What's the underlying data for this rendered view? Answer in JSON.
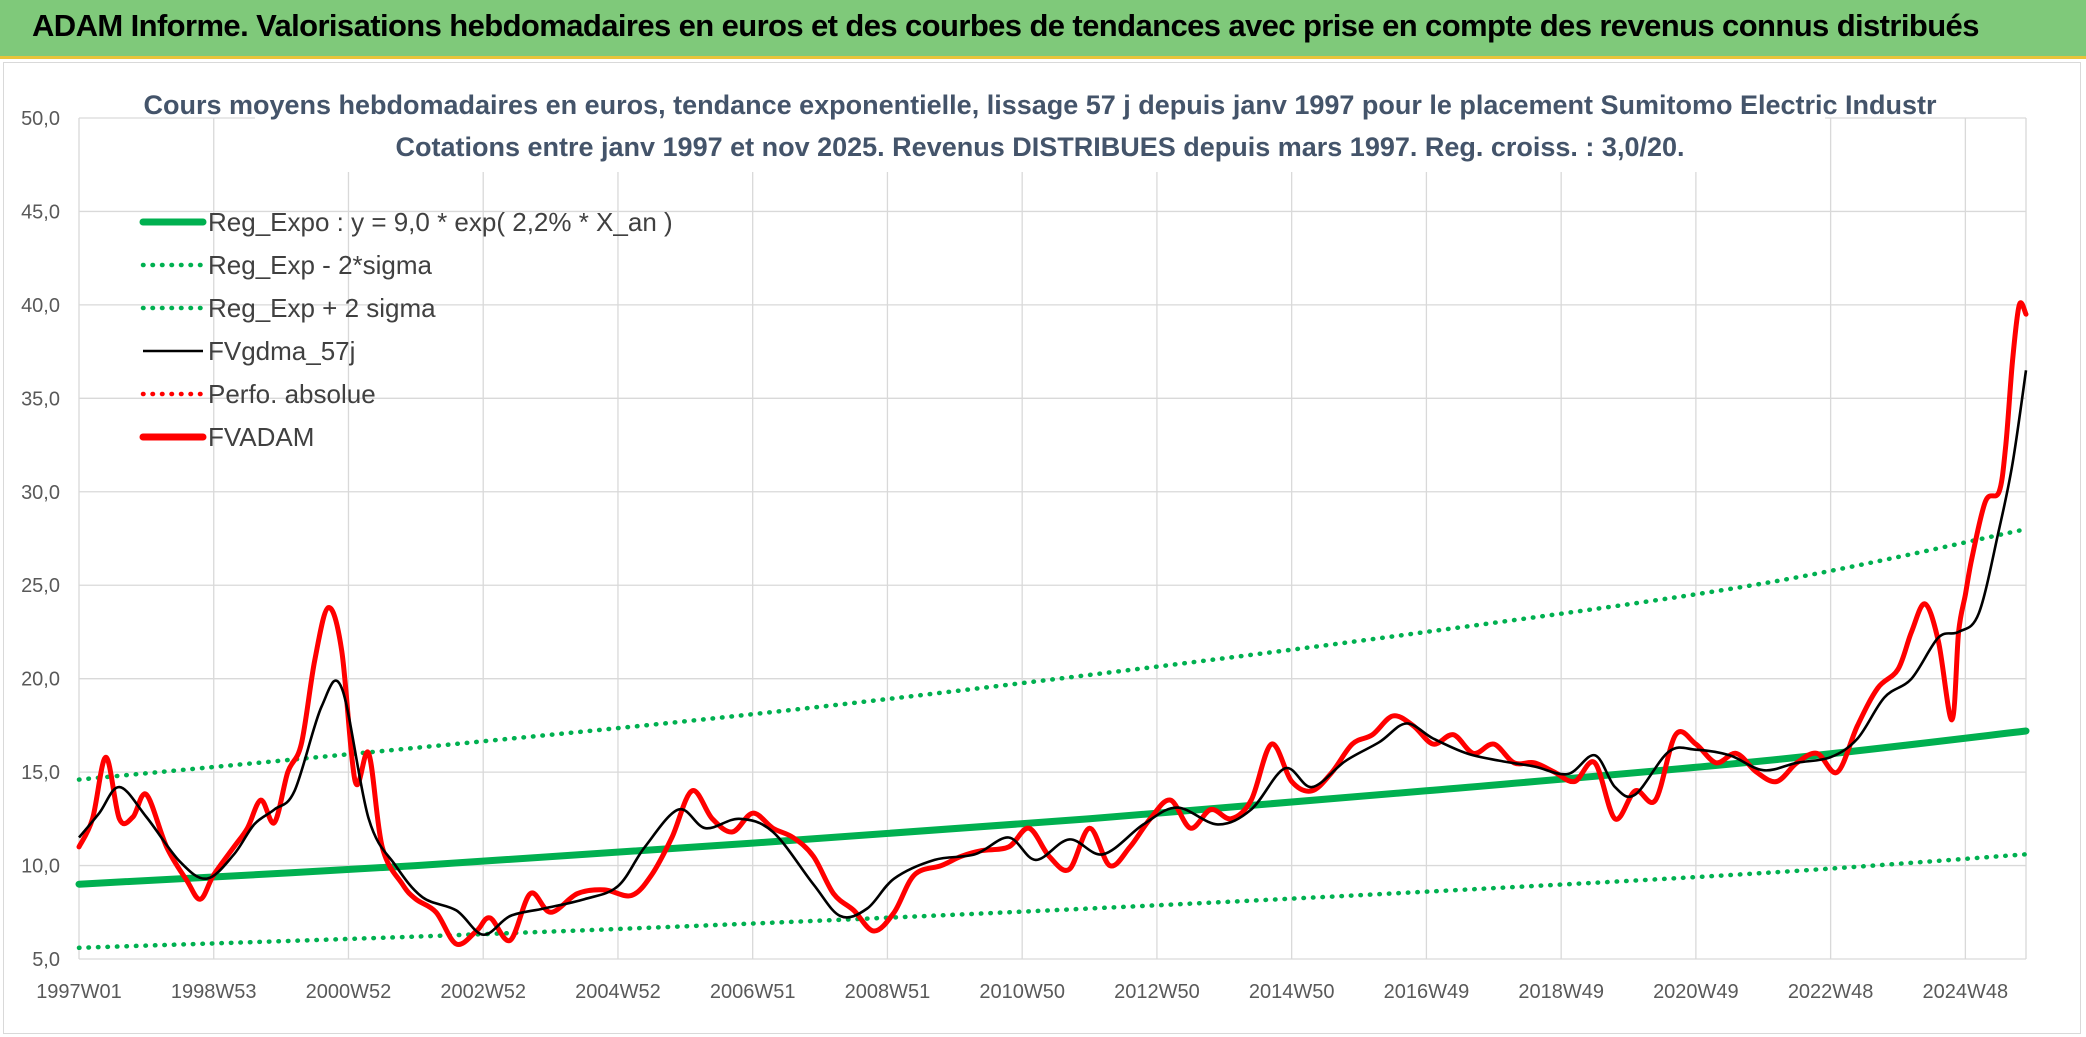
{
  "header": {
    "title": "ADAM Informe. Valorisations hebdomadaires en euros et des courbes de tendances avec prise en compte des revenus connus distribués"
  },
  "chart_data": {
    "type": "line",
    "title": "Cours moyens hebdomadaires en euros, tendance exponentielle, lissage 57 j depuis janv 1997 pour le placement Sumitomo Electric Industr",
    "subtitle": "Cotations entre janv 1997 et nov 2025. Revenus DISTRIBUES depuis mars 1997. Reg. croiss. : 3,0/20.",
    "xlabel": "",
    "ylabel": "",
    "xlim": [
      1997.0,
      2025.9
    ],
    "ylim": [
      5.0,
      50.0
    ],
    "y_ticks": [
      "5,0",
      "10,0",
      "15,0",
      "20,0",
      "25,0",
      "30,0",
      "35,0",
      "40,0",
      "45,0",
      "50,0"
    ],
    "x_ticks": [
      "1997W01",
      "1998W53",
      "2000W52",
      "2002W52",
      "2004W52",
      "2006W51",
      "2008W51",
      "2010W50",
      "2012W50",
      "2014W50",
      "2016W49",
      "2018W49",
      "2020W49",
      "2022W48",
      "2024W48"
    ],
    "grid": true,
    "legend_position": "top-left",
    "legend": [
      {
        "label": "Reg_Expo : y = 9,0 * exp( 2,2% *  X_an )",
        "color": "#00b050",
        "style": "solid-thick"
      },
      {
        "label": "Reg_Exp - 2*sigma",
        "color": "#00b050",
        "style": "dotted"
      },
      {
        "label": "Reg_Exp + 2 sigma",
        "color": "#00b050",
        "style": "dotted"
      },
      {
        "label": "FVgdma_57j",
        "color": "#000000",
        "style": "solid"
      },
      {
        "label": "Perfo. absolue",
        "color": "#ff0000",
        "style": "dotted"
      },
      {
        "label": "FVADAM",
        "color": "#ff0000",
        "style": "solid-thick"
      }
    ],
    "series": [
      {
        "name": "Reg_Expo : y = 9,0 * exp( 2,2% *  X_an )",
        "color": "#00b050",
        "x": [
          1997.0,
          2002.0,
          2007.0,
          2012.0,
          2017.0,
          2022.0,
          2025.9
        ],
        "y": [
          9.0,
          10.0,
          11.2,
          12.5,
          14.0,
          15.6,
          17.2
        ]
      },
      {
        "name": "Reg_Exp - 2*sigma",
        "color": "#00b050",
        "x": [
          1997.0,
          2002.0,
          2007.0,
          2012.0,
          2017.0,
          2022.0,
          2025.9
        ],
        "y": [
          5.6,
          6.2,
          6.9,
          7.7,
          8.6,
          9.6,
          10.6
        ]
      },
      {
        "name": "Reg_Exp + 2 sigma",
        "color": "#00b050",
        "x": [
          1997.0,
          2002.0,
          2007.0,
          2012.0,
          2017.0,
          2022.0,
          2025.9
        ],
        "y": [
          14.6,
          16.3,
          18.1,
          20.2,
          22.5,
          25.1,
          28.0
        ]
      },
      {
        "name": "FVgdma_57j",
        "color": "#000000",
        "x": [
          1997.0,
          1997.3,
          1997.6,
          1998.0,
          1998.5,
          1998.9,
          1999.3,
          1999.6,
          1999.9,
          2000.2,
          2000.6,
          2000.9,
          2001.3,
          2001.7,
          2002.1,
          2002.6,
          2003.0,
          2003.4,
          2003.9,
          2004.5,
          2005.0,
          2005.4,
          2005.9,
          2006.3,
          2006.8,
          2007.3,
          2007.9,
          2008.3,
          2008.7,
          2009.1,
          2009.7,
          2010.3,
          2010.8,
          2011.2,
          2011.7,
          2012.2,
          2012.8,
          2013.3,
          2013.9,
          2014.4,
          2014.9,
          2015.3,
          2015.8,
          2016.3,
          2016.7,
          2017.1,
          2017.6,
          2018.1,
          2018.6,
          2019.1,
          2019.5,
          2019.8,
          2020.1,
          2020.6,
          2021.0,
          2021.5,
          2022.0,
          2022.5,
          2023.0,
          2023.4,
          2023.8,
          2024.2,
          2024.6,
          2024.9,
          2025.2,
          2025.5,
          2025.7,
          2025.9
        ],
        "y": [
          11.5,
          12.8,
          14.2,
          12.6,
          10.2,
          9.3,
          10.6,
          12.2,
          13.0,
          14.0,
          18.5,
          19.5,
          12.5,
          10.0,
          8.3,
          7.6,
          6.3,
          7.3,
          7.7,
          8.2,
          8.9,
          11.0,
          13.0,
          12.0,
          12.5,
          11.8,
          9.0,
          7.3,
          7.7,
          9.3,
          10.3,
          10.6,
          11.5,
          10.3,
          11.4,
          10.6,
          12.2,
          13.1,
          12.2,
          13.0,
          15.2,
          14.2,
          15.6,
          16.6,
          17.6,
          16.8,
          16.0,
          15.6,
          15.3,
          14.9,
          15.9,
          14.2,
          13.8,
          16.1,
          16.2,
          15.9,
          15.1,
          15.5,
          15.8,
          16.8,
          19.0,
          20.0,
          22.2,
          22.5,
          23.5,
          28.0,
          31.5,
          36.5
        ]
      },
      {
        "name": "FVADAM",
        "color": "#ff0000",
        "x": [
          1997.0,
          1997.2,
          1997.4,
          1997.6,
          1997.8,
          1998.0,
          1998.3,
          1998.6,
          1998.8,
          1999.0,
          1999.3,
          1999.5,
          1999.7,
          1999.9,
          2000.1,
          2000.3,
          2000.5,
          2000.7,
          2000.9,
          2001.1,
          2001.3,
          2001.5,
          2001.8,
          2002.0,
          2002.3,
          2002.6,
          2002.9,
          2003.1,
          2003.4,
          2003.7,
          2004.0,
          2004.4,
          2004.8,
          2005.2,
          2005.5,
          2005.8,
          2006.1,
          2006.4,
          2006.7,
          2007.0,
          2007.3,
          2007.6,
          2007.9,
          2008.2,
          2008.5,
          2008.8,
          2009.1,
          2009.4,
          2009.8,
          2010.1,
          2010.4,
          2010.8,
          2011.1,
          2011.4,
          2011.7,
          2012.0,
          2012.3,
          2012.6,
          2012.9,
          2013.2,
          2013.5,
          2013.8,
          2014.1,
          2014.4,
          2014.7,
          2015.0,
          2015.3,
          2015.6,
          2015.9,
          2016.2,
          2016.5,
          2016.8,
          2017.1,
          2017.4,
          2017.7,
          2018.0,
          2018.3,
          2018.6,
          2018.9,
          2019.2,
          2019.5,
          2019.8,
          2020.1,
          2020.4,
          2020.7,
          2021.0,
          2021.3,
          2021.6,
          2021.9,
          2022.2,
          2022.5,
          2022.8,
          2023.1,
          2023.4,
          2023.7,
          2024.0,
          2024.2,
          2024.4,
          2024.6,
          2024.8,
          2024.9,
          2025.0,
          2025.1,
          2025.3,
          2025.5,
          2025.6,
          2025.7,
          2025.8,
          2025.9
        ],
        "y": [
          11.0,
          12.5,
          15.8,
          12.5,
          12.6,
          13.8,
          11.0,
          9.2,
          8.2,
          9.5,
          11.0,
          12.0,
          13.5,
          12.3,
          15.0,
          16.5,
          21.0,
          23.8,
          21.5,
          14.5,
          16.0,
          11.0,
          9.0,
          8.2,
          7.5,
          5.8,
          6.5,
          7.2,
          6.0,
          8.5,
          7.5,
          8.5,
          8.7,
          8.4,
          9.5,
          11.5,
          14.0,
          12.5,
          11.8,
          12.8,
          12.0,
          11.5,
          10.5,
          8.5,
          7.6,
          6.5,
          7.5,
          9.5,
          10.0,
          10.5,
          10.8,
          11.0,
          12.0,
          10.5,
          9.8,
          12.0,
          10.0,
          11.0,
          12.5,
          13.5,
          12.0,
          13.0,
          12.5,
          13.5,
          16.5,
          14.5,
          14.0,
          15.0,
          16.5,
          17.0,
          18.0,
          17.5,
          16.5,
          17.0,
          16.0,
          16.5,
          15.5,
          15.5,
          15.0,
          14.5,
          15.5,
          12.5,
          14.0,
          13.5,
          17.0,
          16.5,
          15.5,
          16.0,
          15.0,
          14.5,
          15.5,
          16.0,
          15.0,
          17.5,
          19.5,
          20.5,
          22.5,
          24.0,
          22.0,
          17.8,
          22.5,
          24.5,
          26.5,
          29.5,
          30.0,
          32.5,
          37.0,
          40.0,
          39.5
        ]
      }
    ]
  }
}
